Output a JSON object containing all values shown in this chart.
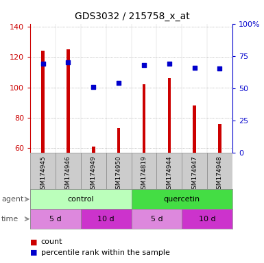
{
  "title": "GDS3032 / 215758_x_at",
  "samples": [
    "GSM174945",
    "GSM174946",
    "GSM174949",
    "GSM174950",
    "GSM174819",
    "GSM174944",
    "GSM174947",
    "GSM174948"
  ],
  "count_values": [
    124,
    125,
    61,
    73,
    102,
    106,
    88,
    76
  ],
  "percentile_values": [
    69,
    70,
    51,
    54,
    68,
    69,
    66,
    65
  ],
  "ylim_left": [
    57,
    142
  ],
  "ylim_right": [
    0,
    100
  ],
  "left_ticks": [
    60,
    80,
    100,
    120,
    140
  ],
  "right_ticks": [
    0,
    25,
    50,
    75,
    100
  ],
  "right_tick_labels": [
    "0",
    "25",
    "50",
    "75",
    "100%"
  ],
  "bar_color": "#cc0000",
  "dot_color": "#0000cc",
  "sample_bg_color": "#cccccc",
  "agent_groups": [
    {
      "label": "control",
      "start": 0,
      "end": 4,
      "color": "#bbffbb"
    },
    {
      "label": "quercetin",
      "start": 4,
      "end": 8,
      "color": "#44dd44"
    }
  ],
  "time_groups": [
    {
      "label": "5 d",
      "start": 0,
      "end": 2,
      "color": "#dd88dd"
    },
    {
      "label": "10 d",
      "start": 2,
      "end": 4,
      "color": "#cc33cc"
    },
    {
      "label": "5 d",
      "start": 4,
      "end": 6,
      "color": "#dd88dd"
    },
    {
      "label": "10 d",
      "start": 6,
      "end": 8,
      "color": "#cc33cc"
    }
  ],
  "legend_count_label": "count",
  "legend_pct_label": "percentile rank within the sample",
  "left_axis_color": "#cc0000",
  "right_axis_color": "#0000cc",
  "font_size": 8,
  "title_font_size": 10,
  "bar_width": 0.12
}
